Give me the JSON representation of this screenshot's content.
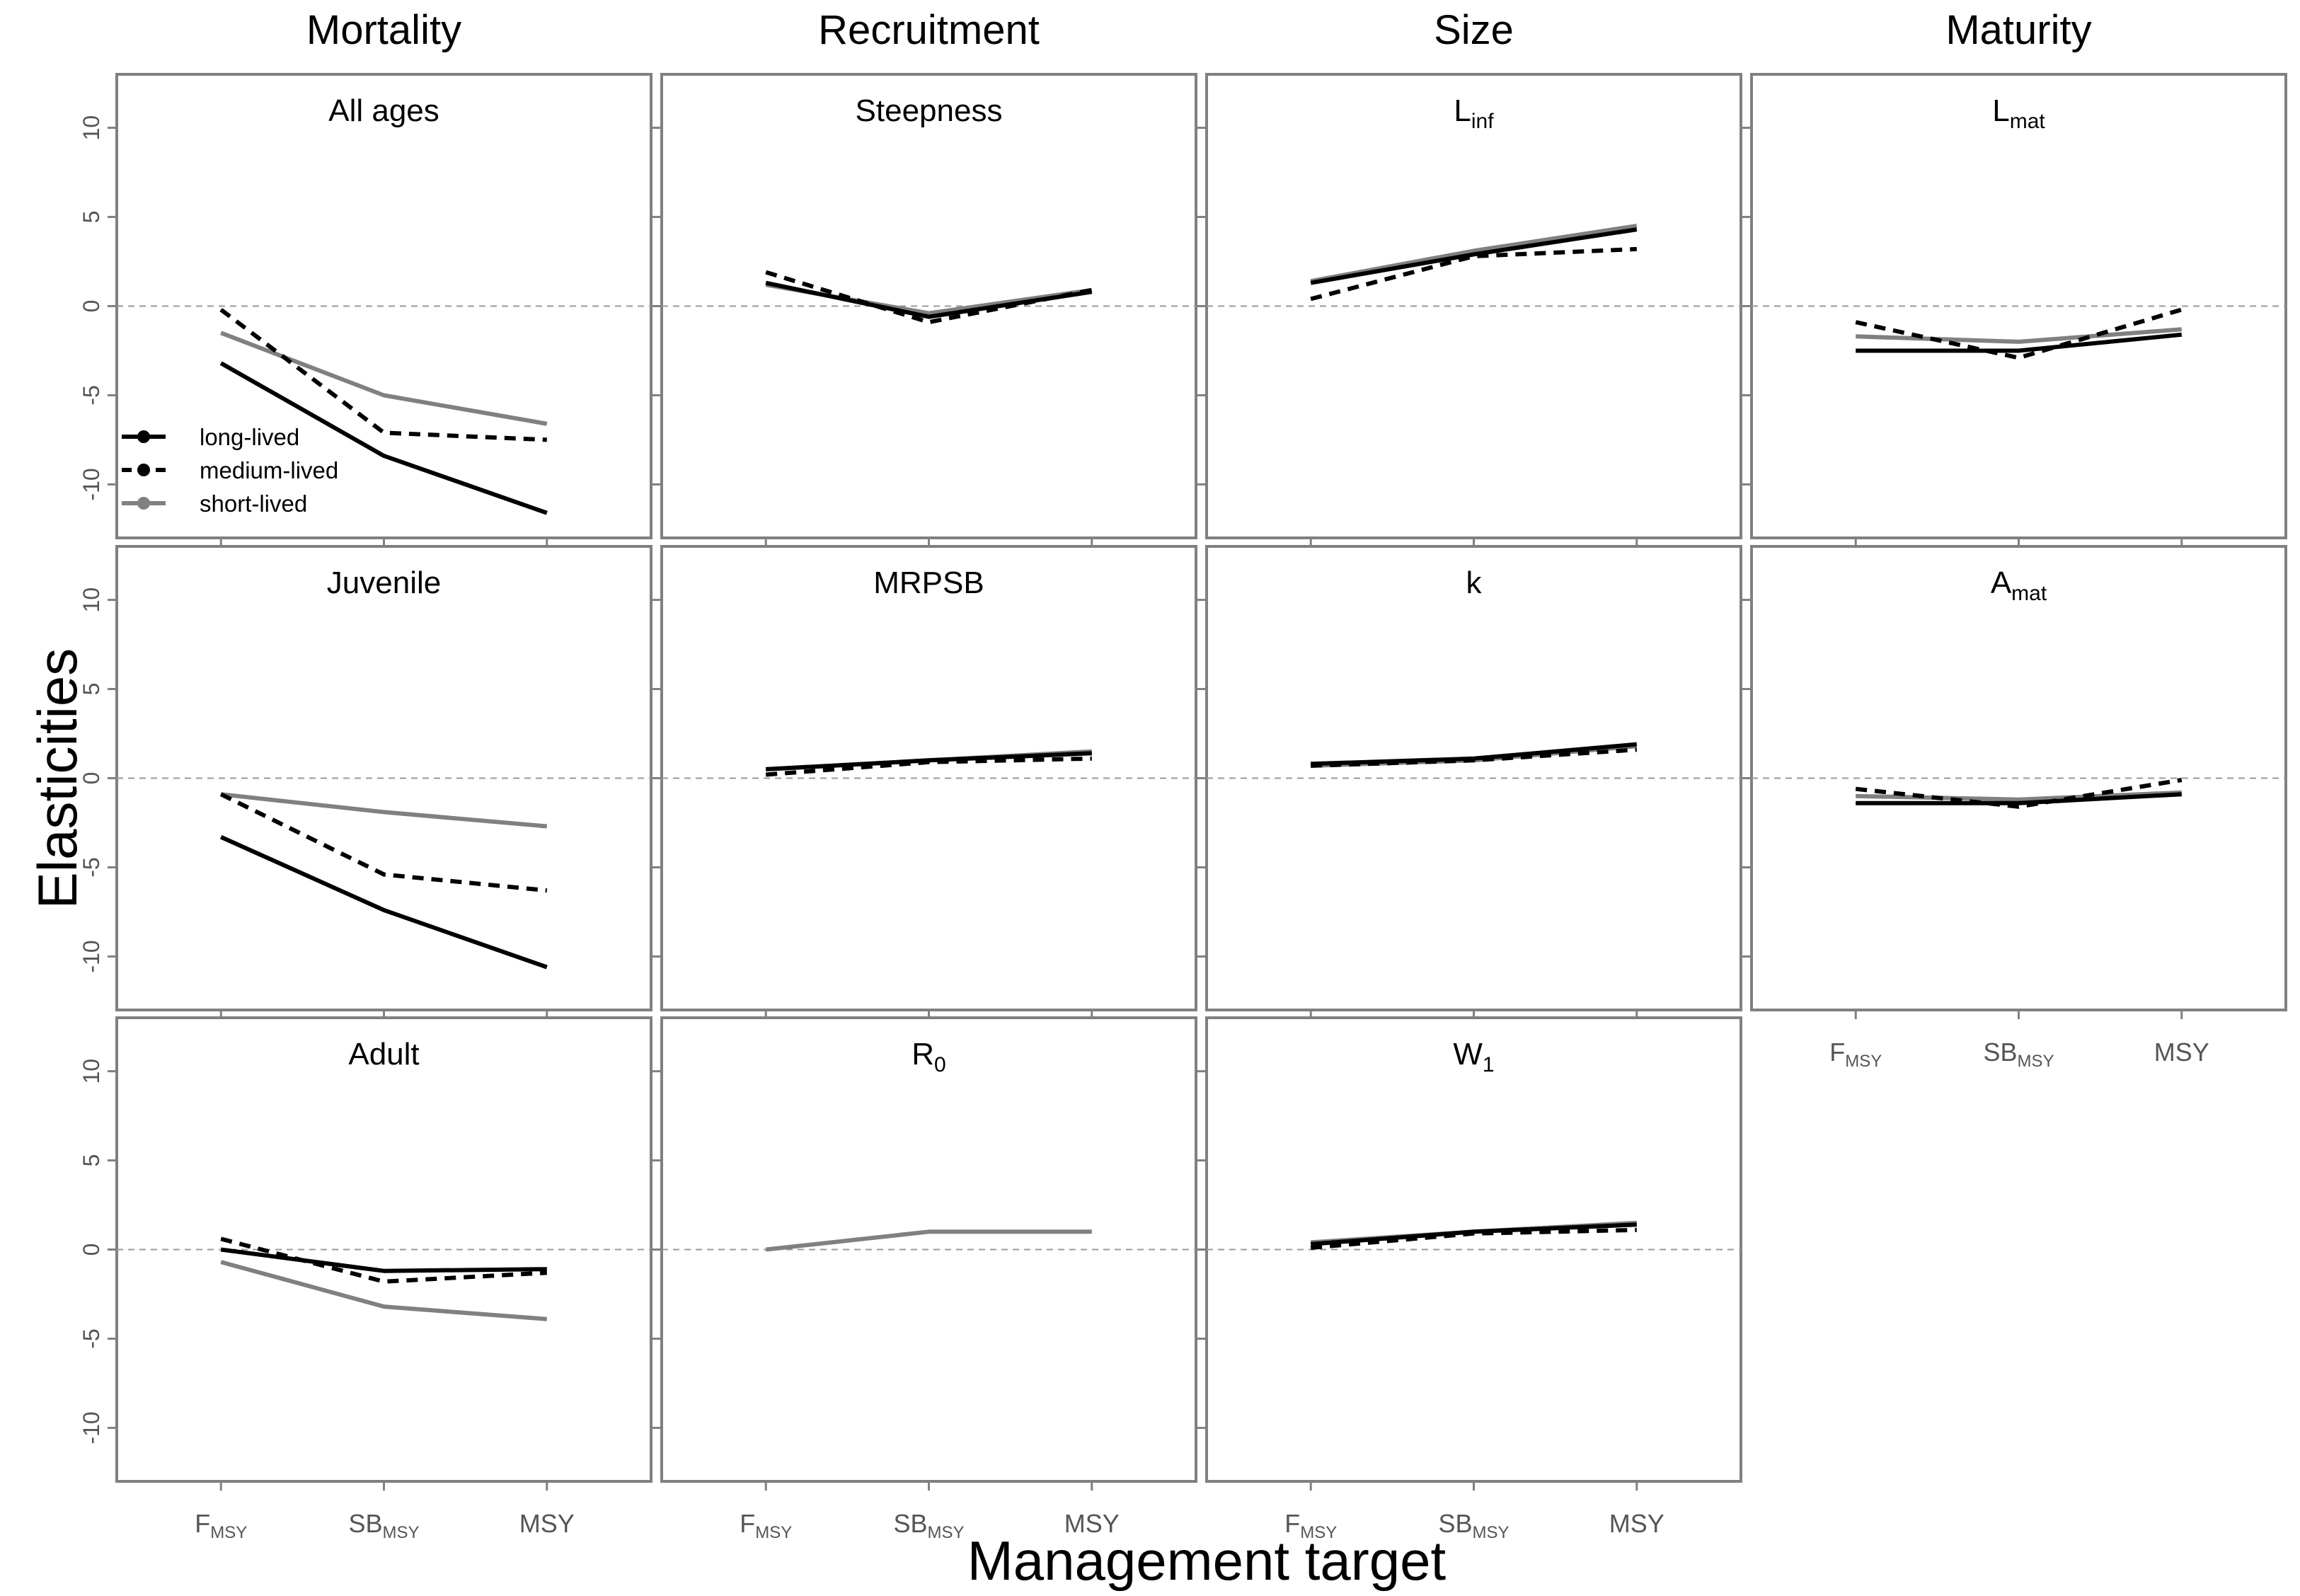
{
  "chart_data": {
    "type": "line",
    "xlabel": "Management target",
    "ylabel": "Elasticities",
    "column_titles": [
      "Mortality",
      "Recruitment",
      "Size",
      "Maturity"
    ],
    "x_categories": [
      {
        "main": "F",
        "sub": "MSY"
      },
      {
        "main": "SB",
        "sub": "MSY"
      },
      {
        "main": "MSY",
        "sub": ""
      }
    ],
    "y_ticks": [
      -10,
      -5,
      0,
      5,
      10
    ],
    "ylim": [
      -13,
      13
    ],
    "reference_line": 0,
    "grid": false,
    "legend": {
      "placement": "inside-first-panel-lower-left",
      "entries": [
        {
          "series": "long-lived",
          "label": "long-lived",
          "color": "#000000",
          "dash": "solid"
        },
        {
          "series": "medium-lived",
          "label": "medium-lived",
          "color": "#000000",
          "dash": "dashed"
        },
        {
          "series": "short-lived",
          "label": "short-lived",
          "color": "#808080",
          "dash": "solid"
        }
      ]
    },
    "panels": [
      {
        "row": 0,
        "col": 0,
        "title": {
          "main": "All ages",
          "sub": ""
        },
        "series": [
          {
            "name": "long-lived",
            "values": [
              -3.2,
              -8.4,
              -11.6
            ]
          },
          {
            "name": "medium-lived",
            "values": [
              -0.2,
              -7.1,
              -7.5
            ]
          },
          {
            "name": "short-lived",
            "values": [
              -1.5,
              -5.0,
              -6.6
            ]
          }
        ]
      },
      {
        "row": 0,
        "col": 1,
        "title": {
          "main": "Steepness",
          "sub": ""
        },
        "series": [
          {
            "name": "long-lived",
            "values": [
              1.3,
              -0.6,
              0.8
            ]
          },
          {
            "name": "medium-lived",
            "values": [
              1.9,
              -0.9,
              0.9
            ]
          },
          {
            "name": "short-lived",
            "values": [
              1.2,
              -0.4,
              0.9
            ]
          }
        ]
      },
      {
        "row": 0,
        "col": 2,
        "title": {
          "main": "L",
          "sub": "inf"
        },
        "series": [
          {
            "name": "long-lived",
            "values": [
              1.3,
              2.9,
              4.3
            ]
          },
          {
            "name": "medium-lived",
            "values": [
              0.4,
              2.8,
              3.2
            ]
          },
          {
            "name": "short-lived",
            "values": [
              1.4,
              3.1,
              4.5
            ]
          }
        ]
      },
      {
        "row": 0,
        "col": 3,
        "title": {
          "main": "L",
          "sub": "mat"
        },
        "series": [
          {
            "name": "long-lived",
            "values": [
              -2.5,
              -2.5,
              -1.6
            ]
          },
          {
            "name": "medium-lived",
            "values": [
              -0.9,
              -2.9,
              -0.2
            ]
          },
          {
            "name": "short-lived",
            "values": [
              -1.7,
              -2.0,
              -1.3
            ]
          }
        ]
      },
      {
        "row": 1,
        "col": 0,
        "title": {
          "main": "Juvenile",
          "sub": ""
        },
        "series": [
          {
            "name": "long-lived",
            "values": [
              -3.3,
              -7.4,
              -10.6
            ]
          },
          {
            "name": "medium-lived",
            "values": [
              -0.9,
              -5.4,
              -6.3
            ]
          },
          {
            "name": "short-lived",
            "values": [
              -0.9,
              -1.9,
              -2.7
            ]
          }
        ]
      },
      {
        "row": 1,
        "col": 1,
        "title": {
          "main": "MRPSB",
          "sub": ""
        },
        "series": [
          {
            "name": "long-lived",
            "values": [
              0.5,
              1.0,
              1.4
            ]
          },
          {
            "name": "medium-lived",
            "values": [
              0.2,
              0.9,
              1.1
            ]
          },
          {
            "name": "short-lived",
            "values": [
              0.5,
              1.0,
              1.5
            ]
          }
        ]
      },
      {
        "row": 1,
        "col": 2,
        "title": {
          "main": "k",
          "sub": ""
        },
        "series": [
          {
            "name": "long-lived",
            "values": [
              0.8,
              1.1,
              1.9
            ]
          },
          {
            "name": "medium-lived",
            "values": [
              0.7,
              1.0,
              1.6
            ]
          },
          {
            "name": "short-lived",
            "values": [
              0.7,
              1.0,
              1.8
            ]
          }
        ]
      },
      {
        "row": 1,
        "col": 3,
        "title": {
          "main": "A",
          "sub": "mat"
        },
        "series": [
          {
            "name": "long-lived",
            "values": [
              -1.4,
              -1.4,
              -0.9
            ]
          },
          {
            "name": "medium-lived",
            "values": [
              -0.6,
              -1.6,
              -0.1
            ]
          },
          {
            "name": "short-lived",
            "values": [
              -1.0,
              -1.2,
              -0.8
            ]
          }
        ]
      },
      {
        "row": 2,
        "col": 0,
        "title": {
          "main": "Adult",
          "sub": ""
        },
        "series": [
          {
            "name": "long-lived",
            "values": [
              0.0,
              -1.2,
              -1.1
            ]
          },
          {
            "name": "medium-lived",
            "values": [
              0.6,
              -1.8,
              -1.3
            ]
          },
          {
            "name": "short-lived",
            "values": [
              -0.7,
              -3.2,
              -3.9
            ]
          }
        ]
      },
      {
        "row": 2,
        "col": 1,
        "title": {
          "main": "R",
          "sub": "0"
        },
        "series": [
          {
            "name": "short-lived",
            "values": [
              0.0,
              1.0,
              1.0
            ]
          }
        ]
      },
      {
        "row": 2,
        "col": 2,
        "title": {
          "main": "W",
          "sub": "1"
        },
        "series": [
          {
            "name": "long-lived",
            "values": [
              0.3,
              1.0,
              1.4
            ]
          },
          {
            "name": "medium-lived",
            "values": [
              0.1,
              0.9,
              1.1
            ]
          },
          {
            "name": "short-lived",
            "values": [
              0.4,
              1.0,
              1.5
            ]
          }
        ]
      }
    ]
  }
}
